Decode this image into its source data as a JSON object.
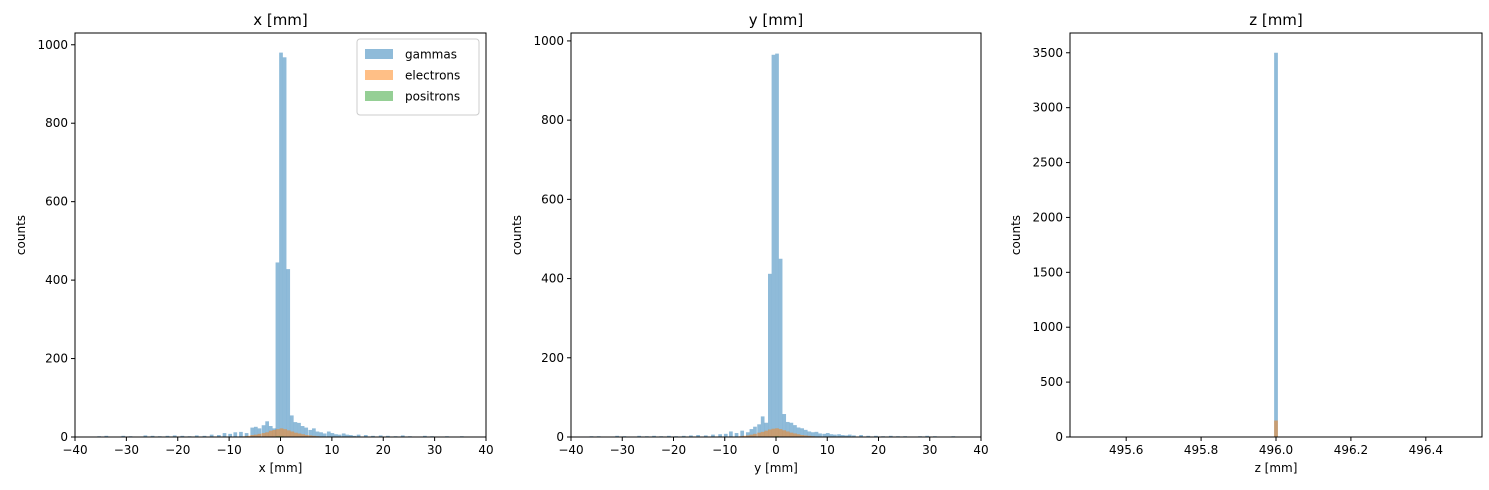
{
  "chart_data": [
    {
      "type": "bar",
      "title": "x [mm]",
      "xlabel": "x [mm]",
      "ylabel": "counts",
      "xlim": [
        -40,
        40
      ],
      "ylim": [
        0,
        1030
      ],
      "xticks": [
        -40,
        -30,
        -20,
        -10,
        0,
        10,
        20,
        30,
        40
      ],
      "xtick_labels": [
        "−40",
        "−30",
        "−20",
        "−10",
        "0",
        "10",
        "20",
        "30",
        "40"
      ],
      "yticks": [
        0,
        200,
        400,
        600,
        800,
        1000
      ],
      "ytick_labels": [
        "0",
        "200",
        "400",
        "600",
        "800",
        "1000"
      ],
      "legend": {
        "location": "upper right",
        "entries": [
          "gammas",
          "electrons",
          "positrons"
        ]
      },
      "bin_width": 0.72,
      "series": [
        {
          "name": "gammas",
          "color": "#1f77b4",
          "alpha": 0.5,
          "bins": [
            [
              -35.3,
              2
            ],
            [
              -33.9,
              3
            ],
            [
              -32.4,
              1
            ],
            [
              -30.6,
              3
            ],
            [
              -29.2,
              2
            ],
            [
              -27.8,
              1
            ],
            [
              -26.3,
              4
            ],
            [
              -24.9,
              3
            ],
            [
              -23.5,
              2
            ],
            [
              -22.0,
              3
            ],
            [
              -20.6,
              4
            ],
            [
              -19.1,
              3
            ],
            [
              -17.7,
              2
            ],
            [
              -16.3,
              4
            ],
            [
              -14.8,
              3
            ],
            [
              -13.4,
              6
            ],
            [
              -12.0,
              5
            ],
            [
              -10.9,
              10
            ],
            [
              -9.8,
              8
            ],
            [
              -8.8,
              12
            ],
            [
              -7.7,
              13
            ],
            [
              -6.6,
              10
            ],
            [
              -5.5,
              24
            ],
            [
              -4.8,
              26
            ],
            [
              -4.1,
              22
            ],
            [
              -3.3,
              30
            ],
            [
              -2.6,
              40
            ],
            [
              -1.9,
              28
            ],
            [
              -1.2,
              22
            ],
            [
              -0.6,
              445
            ],
            [
              0.1,
              980
            ],
            [
              0.8,
              968
            ],
            [
              1.5,
              428
            ],
            [
              2.2,
              55
            ],
            [
              2.9,
              38
            ],
            [
              3.6,
              36
            ],
            [
              4.3,
              28
            ],
            [
              5.0,
              24
            ],
            [
              5.8,
              18
            ],
            [
              6.5,
              22
            ],
            [
              7.2,
              14
            ],
            [
              7.9,
              12
            ],
            [
              8.6,
              9
            ],
            [
              9.4,
              14
            ],
            [
              10.1,
              10
            ],
            [
              10.8,
              7
            ],
            [
              11.5,
              6
            ],
            [
              12.3,
              9
            ],
            [
              13.0,
              6
            ],
            [
              13.7,
              5
            ],
            [
              14.4,
              3
            ],
            [
              15.2,
              6
            ],
            [
              16.6,
              5
            ],
            [
              18.0,
              3
            ],
            [
              19.5,
              4
            ],
            [
              20.9,
              3
            ],
            [
              22.4,
              2
            ],
            [
              23.8,
              4
            ],
            [
              25.2,
              2
            ],
            [
              26.7,
              1
            ],
            [
              28.1,
              3
            ],
            [
              29.5,
              2
            ],
            [
              31.0,
              1
            ],
            [
              32.4,
              2
            ],
            [
              33.9,
              1
            ],
            [
              35.3,
              2
            ]
          ]
        },
        {
          "name": "electrons",
          "color": "#ff7f0e",
          "alpha": 0.5,
          "bins": [
            [
              -6.9,
              2
            ],
            [
              -6.2,
              3
            ],
            [
              -5.5,
              5
            ],
            [
              -4.8,
              6
            ],
            [
              -4.1,
              8
            ],
            [
              -3.3,
              10
            ],
            [
              -2.6,
              12
            ],
            [
              -1.9,
              16
            ],
            [
              -1.2,
              18
            ],
            [
              -0.5,
              20
            ],
            [
              0.2,
              22
            ],
            [
              0.9,
              20
            ],
            [
              1.6,
              17
            ],
            [
              2.3,
              14
            ],
            [
              3.0,
              11
            ],
            [
              3.7,
              9
            ],
            [
              4.4,
              7
            ],
            [
              5.1,
              5
            ],
            [
              5.8,
              4
            ],
            [
              6.5,
              3
            ],
            [
              7.2,
              2
            ]
          ]
        },
        {
          "name": "positrons",
          "color": "#2ca02c",
          "alpha": 0.5,
          "bins": [
            [
              -1.2,
              1
            ],
            [
              -0.5,
              2
            ],
            [
              0.2,
              2
            ],
            [
              0.9,
              1
            ]
          ]
        }
      ]
    },
    {
      "type": "bar",
      "title": "y [mm]",
      "xlabel": "y [mm]",
      "ylabel": "counts",
      "xlim": [
        -40,
        40
      ],
      "ylim": [
        0,
        1020
      ],
      "xticks": [
        -40,
        -30,
        -20,
        -10,
        0,
        10,
        20,
        30,
        40
      ],
      "xtick_labels": [
        "−40",
        "−30",
        "−20",
        "−10",
        "0",
        "10",
        "20",
        "30",
        "40"
      ],
      "yticks": [
        0,
        200,
        400,
        600,
        800,
        1000
      ],
      "ytick_labels": [
        "0",
        "200",
        "400",
        "600",
        "800",
        "1000"
      ],
      "bin_width": 0.72,
      "series": [
        {
          "name": "gammas",
          "color": "#1f77b4",
          "alpha": 0.5,
          "bins": [
            [
              -36.0,
              2
            ],
            [
              -34.6,
              2
            ],
            [
              -33.1,
              1
            ],
            [
              -31.0,
              3
            ],
            [
              -29.6,
              2
            ],
            [
              -28.1,
              1
            ],
            [
              -26.7,
              3
            ],
            [
              -25.2,
              2
            ],
            [
              -23.8,
              3
            ],
            [
              -22.4,
              2
            ],
            [
              -20.9,
              3
            ],
            [
              -19.5,
              2
            ],
            [
              -18.0,
              3
            ],
            [
              -16.6,
              4
            ],
            [
              -15.2,
              5
            ],
            [
              -13.7,
              4
            ],
            [
              -12.3,
              6
            ],
            [
              -10.9,
              7
            ],
            [
              -9.8,
              8
            ],
            [
              -8.8,
              14
            ],
            [
              -7.7,
              10
            ],
            [
              -6.6,
              16
            ],
            [
              -5.5,
              12
            ],
            [
              -4.8,
              20
            ],
            [
              -4.1,
              26
            ],
            [
              -3.3,
              32
            ],
            [
              -2.6,
              52
            ],
            [
              -1.9,
              36
            ],
            [
              -1.2,
              412
            ],
            [
              -0.5,
              965
            ],
            [
              0.2,
              968
            ],
            [
              0.9,
              450
            ],
            [
              1.6,
              58
            ],
            [
              2.3,
              38
            ],
            [
              3.0,
              36
            ],
            [
              3.7,
              30
            ],
            [
              4.4,
              24
            ],
            [
              5.1,
              22
            ],
            [
              5.8,
              18
            ],
            [
              6.5,
              14
            ],
            [
              7.2,
              12
            ],
            [
              7.9,
              13
            ],
            [
              8.6,
              9
            ],
            [
              9.4,
              8
            ],
            [
              10.1,
              10
            ],
            [
              10.8,
              7
            ],
            [
              11.5,
              6
            ],
            [
              12.3,
              7
            ],
            [
              13.0,
              5
            ],
            [
              13.7,
              4
            ],
            [
              14.4,
              6
            ],
            [
              15.2,
              4
            ],
            [
              16.6,
              5
            ],
            [
              18.0,
              3
            ],
            [
              19.5,
              3
            ],
            [
              20.9,
              2
            ],
            [
              22.4,
              3
            ],
            [
              23.8,
              2
            ],
            [
              25.2,
              2
            ],
            [
              26.7,
              1
            ],
            [
              28.1,
              2
            ],
            [
              29.5,
              3
            ],
            [
              31.0,
              2
            ],
            [
              32.4,
              1
            ],
            [
              34.6,
              2
            ],
            [
              36.0,
              1
            ]
          ]
        },
        {
          "name": "electrons",
          "color": "#ff7f0e",
          "alpha": 0.5,
          "bins": [
            [
              -6.9,
              2
            ],
            [
              -6.2,
              3
            ],
            [
              -5.5,
              4
            ],
            [
              -4.8,
              6
            ],
            [
              -4.1,
              8
            ],
            [
              -3.3,
              11
            ],
            [
              -2.6,
              13
            ],
            [
              -1.9,
              16
            ],
            [
              -1.2,
              19
            ],
            [
              -0.5,
              21
            ],
            [
              0.2,
              22
            ],
            [
              0.9,
              20
            ],
            [
              1.6,
              17
            ],
            [
              2.3,
              14
            ],
            [
              3.0,
              11
            ],
            [
              3.7,
              9
            ],
            [
              4.4,
              7
            ],
            [
              5.1,
              5
            ],
            [
              5.8,
              4
            ],
            [
              6.5,
              3
            ],
            [
              7.2,
              2
            ]
          ]
        },
        {
          "name": "positrons",
          "color": "#2ca02c",
          "alpha": 0.5,
          "bins": [
            [
              -0.5,
              1
            ],
            [
              0.2,
              2
            ],
            [
              0.9,
              1
            ]
          ]
        }
      ]
    },
    {
      "type": "bar",
      "title": "z [mm]",
      "xlabel": "z [mm]",
      "ylabel": "counts",
      "xlim": [
        495.45,
        496.55
      ],
      "ylim": [
        0,
        3680
      ],
      "xticks": [
        495.6,
        495.8,
        496.0,
        496.2,
        496.4
      ],
      "xtick_labels": [
        "495.6",
        "495.8",
        "496.0",
        "496.2",
        "496.4"
      ],
      "yticks": [
        0,
        500,
        1000,
        1500,
        2000,
        2500,
        3000,
        3500
      ],
      "ytick_labels": [
        "0",
        "500",
        "1000",
        "1500",
        "2000",
        "2500",
        "3000",
        "3500"
      ],
      "bin_width": 0.01,
      "series": [
        {
          "name": "gammas",
          "color": "#1f77b4",
          "alpha": 0.5,
          "bins": [
            [
              496.0,
              3500
            ]
          ]
        },
        {
          "name": "electrons",
          "color": "#ff7f0e",
          "alpha": 0.5,
          "bins": [
            [
              496.0,
              150
            ]
          ]
        },
        {
          "name": "positrons",
          "color": "#2ca02c",
          "alpha": 0.5,
          "bins": [
            [
              496.0,
              5
            ]
          ]
        }
      ]
    }
  ]
}
